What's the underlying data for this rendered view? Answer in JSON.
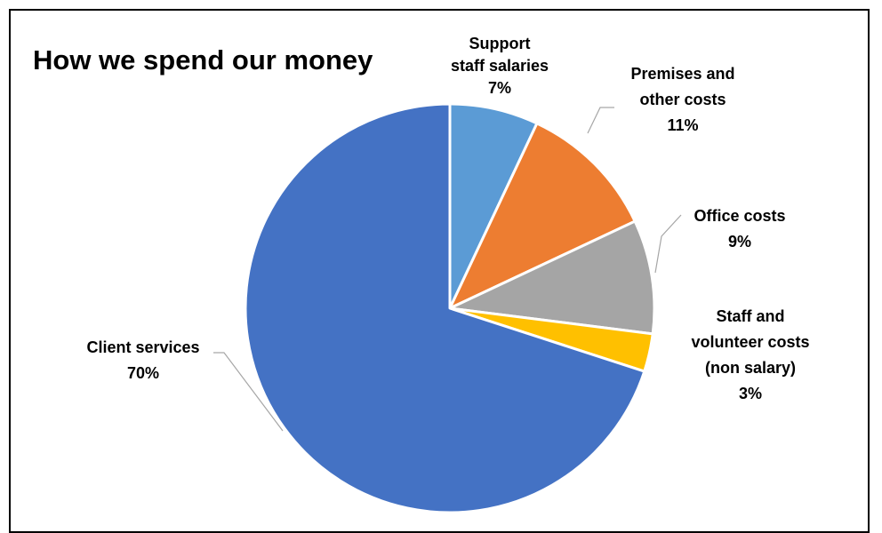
{
  "chart_data": {
    "type": "pie",
    "title": "How we spend our money",
    "slices": [
      {
        "label_lines": [
          "Support",
          "staff salaries"
        ],
        "value": 7,
        "value_label": "7%",
        "color": "#5B9BD5"
      },
      {
        "label_lines": [
          "Premises and",
          "other costs"
        ],
        "value": 11,
        "value_label": "11%",
        "color": "#ED7D31"
      },
      {
        "label_lines": [
          "Office costs"
        ],
        "value": 9,
        "value_label": "9%",
        "color": "#A5A5A5"
      },
      {
        "label_lines": [
          "Staff and",
          "volunteer costs",
          "(non salary)"
        ],
        "value": 3,
        "value_label": "3%",
        "color": "#FFC000"
      },
      {
        "label_lines": [
          "Client services"
        ],
        "value": 70,
        "value_label": "70%",
        "color": "#4472C4"
      }
    ],
    "start_angle": "12 o'clock",
    "direction": "clockwise",
    "legend": "none",
    "data_labels": "outside with leader lines"
  }
}
